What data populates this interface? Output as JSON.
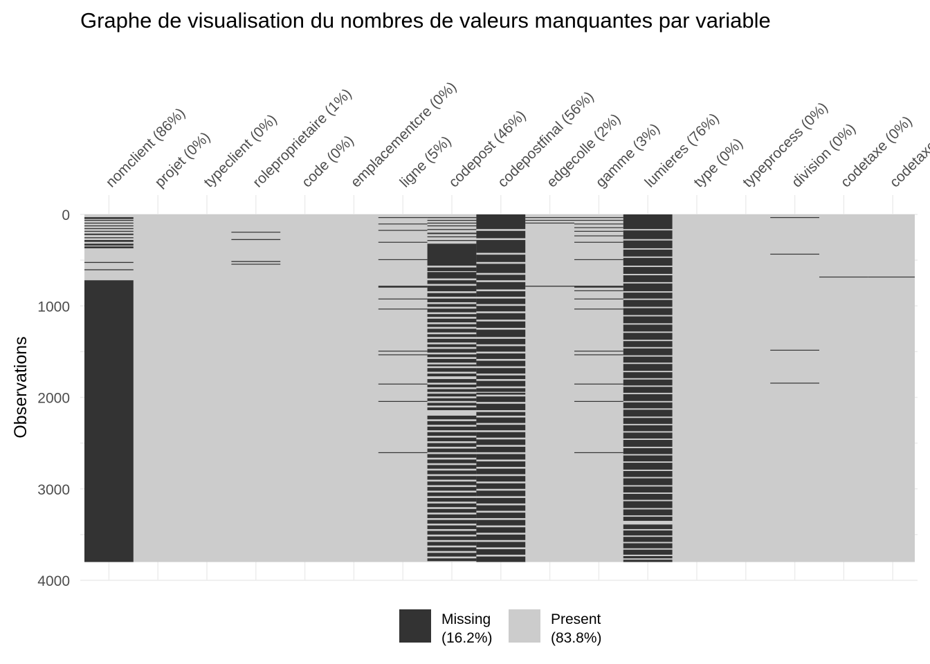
{
  "chart_data": {
    "type": "heatmap",
    "title": "Graphe de visualisation du nombres de valeurs manquantes par variable",
    "xlabel": "",
    "ylabel": "Observations",
    "y_ticks": [
      "0",
      "1000",
      "2000",
      "3000",
      "4000"
    ],
    "ylim": [
      0,
      4000
    ],
    "n_observations": 3800,
    "variables": [
      "nomclient (86%)",
      "projet (0%)",
      "typeclient (0%)",
      "roleproprietaire (1%)",
      "code (0%)",
      "emplacementcre (0%)",
      "ligne (5%)",
      "codepost (46%)",
      "codepostfinal (56%)",
      "edgecolle (2%)",
      "gamme (3%)",
      "lumieres (76%)",
      "type (0%)",
      "typeprocess (0%)",
      "division (0%)",
      "codetaxe (0%)",
      "codetaxe"
    ],
    "missing_rows": {
      "nomclient (86%)": [
        [
          30,
          50
        ],
        [
          60,
          70
        ],
        [
          90,
          100
        ],
        [
          120,
          130
        ],
        [
          150,
          160
        ],
        [
          180,
          190
        ],
        [
          210,
          225
        ],
        [
          250,
          260
        ],
        [
          280,
          300
        ],
        [
          320,
          340
        ],
        [
          350,
          370
        ],
        [
          520,
          530
        ],
        [
          600,
          610
        ],
        [
          720,
          3800
        ]
      ],
      "projet (0%)": [],
      "typeclient (0%)": [],
      "roleproprietaire (1%)": [
        [
          190,
          198
        ],
        [
          270,
          280
        ],
        [
          510,
          520
        ],
        [
          540,
          548
        ]
      ],
      "code (0%)": [],
      "emplacementcre (0%)": [],
      "ligne (5%)": [
        [
          30,
          38
        ],
        [
          100,
          108
        ],
        [
          170,
          178
        ],
        [
          300,
          308
        ],
        [
          490,
          498
        ],
        [
          780,
          800
        ],
        [
          920,
          928
        ],
        [
          1030,
          1038
        ],
        [
          1490,
          1498
        ],
        [
          1530,
          1538
        ],
        [
          1850,
          1858
        ],
        [
          2040,
          2048
        ],
        [
          2600,
          2608
        ]
      ],
      "codepost (46%)": [
        [
          30,
          40
        ],
        [
          60,
          70
        ],
        [
          90,
          100
        ],
        [
          120,
          130
        ],
        [
          160,
          170
        ],
        [
          200,
          215
        ],
        [
          240,
          250
        ],
        [
          280,
          290
        ],
        [
          320,
          560
        ],
        [
          580,
          620
        ],
        [
          630,
          700
        ],
        [
          720,
          760
        ],
        [
          780,
          840
        ],
        [
          860,
          900
        ],
        [
          920,
          960
        ],
        [
          980,
          1010
        ],
        [
          1030,
          1070
        ],
        [
          1090,
          1120
        ],
        [
          1140,
          1180
        ],
        [
          1200,
          1230
        ],
        [
          1250,
          1290
        ],
        [
          1310,
          1340
        ],
        [
          1360,
          1400
        ],
        [
          1420,
          1450
        ],
        [
          1470,
          1510
        ],
        [
          1530,
          1560
        ],
        [
          1580,
          1620
        ],
        [
          1640,
          1660
        ],
        [
          1680,
          1720
        ],
        [
          1740,
          1770
        ],
        [
          1800,
          1840
        ],
        [
          1860,
          1890
        ],
        [
          1910,
          1940
        ],
        [
          1960,
          1990
        ],
        [
          2010,
          2040
        ],
        [
          2060,
          2090
        ],
        [
          2110,
          2140
        ],
        [
          2200,
          2240
        ],
        [
          2260,
          2300
        ],
        [
          2320,
          2360
        ],
        [
          2380,
          2420
        ],
        [
          2440,
          2480
        ],
        [
          2500,
          2540
        ],
        [
          2560,
          2600
        ],
        [
          2620,
          2660
        ],
        [
          2680,
          2720
        ],
        [
          2740,
          2780
        ],
        [
          2800,
          2840
        ],
        [
          2860,
          2900
        ],
        [
          2920,
          2960
        ],
        [
          2980,
          3020
        ],
        [
          3040,
          3080
        ],
        [
          3100,
          3140
        ],
        [
          3160,
          3200
        ],
        [
          3220,
          3260
        ],
        [
          3280,
          3320
        ],
        [
          3340,
          3380
        ],
        [
          3400,
          3440
        ],
        [
          3460,
          3500
        ],
        [
          3520,
          3560
        ],
        [
          3580,
          3620
        ],
        [
          3640,
          3680
        ],
        [
          3700,
          3740
        ],
        [
          3760,
          3790
        ]
      ],
      "codepostfinal (56%)": [
        [
          0,
          160
        ],
        [
          180,
          260
        ],
        [
          280,
          420
        ],
        [
          440,
          520
        ],
        [
          540,
          640
        ],
        [
          660,
          720
        ],
        [
          740,
          820
        ],
        [
          840,
          900
        ],
        [
          920,
          980
        ],
        [
          1000,
          1060
        ],
        [
          1080,
          1150
        ],
        [
          1170,
          1240
        ],
        [
          1260,
          1340
        ],
        [
          1360,
          1420
        ],
        [
          1440,
          1500
        ],
        [
          1520,
          1580
        ],
        [
          1600,
          1660
        ],
        [
          1680,
          1740
        ],
        [
          1760,
          1800
        ],
        [
          1820,
          1880
        ],
        [
          1900,
          1940
        ],
        [
          1950,
          1970
        ],
        [
          1990,
          2050
        ],
        [
          2070,
          2140
        ],
        [
          2160,
          2200
        ],
        [
          2220,
          2280
        ],
        [
          2300,
          2360
        ],
        [
          2380,
          2440
        ],
        [
          2460,
          2520
        ],
        [
          2540,
          2600
        ],
        [
          2620,
          2680
        ],
        [
          2700,
          2760
        ],
        [
          2780,
          2840
        ],
        [
          2860,
          2920
        ],
        [
          2940,
          3000
        ],
        [
          3020,
          3080
        ],
        [
          3100,
          3160
        ],
        [
          3180,
          3240
        ],
        [
          3260,
          3320
        ],
        [
          3340,
          3400
        ],
        [
          3420,
          3480
        ],
        [
          3500,
          3560
        ],
        [
          3580,
          3640
        ],
        [
          3660,
          3720
        ],
        [
          3740,
          3800
        ]
      ],
      "edgecolle (2%)": [
        [
          30,
          38
        ],
        [
          60,
          68
        ],
        [
          90,
          98
        ],
        [
          780,
          790
        ]
      ],
      "gamme (3%)": [
        [
          30,
          38
        ],
        [
          60,
          68
        ],
        [
          100,
          108
        ],
        [
          140,
          148
        ],
        [
          180,
          188
        ],
        [
          230,
          238
        ],
        [
          300,
          308
        ],
        [
          490,
          498
        ],
        [
          780,
          800
        ],
        [
          830,
          838
        ],
        [
          920,
          928
        ],
        [
          1030,
          1038
        ],
        [
          1490,
          1498
        ],
        [
          1530,
          1538
        ],
        [
          1850,
          1858
        ],
        [
          2040,
          2048
        ],
        [
          2600,
          2608
        ]
      ],
      "lumieres (76%)": [
        [
          0,
          160
        ],
        [
          175,
          270
        ],
        [
          285,
          370
        ],
        [
          385,
          460
        ],
        [
          475,
          560
        ],
        [
          575,
          650
        ],
        [
          665,
          740
        ],
        [
          755,
          840
        ],
        [
          855,
          920
        ],
        [
          935,
          1010
        ],
        [
          1025,
          1100
        ],
        [
          1115,
          1190
        ],
        [
          1205,
          1280
        ],
        [
          1295,
          1370
        ],
        [
          1385,
          1450
        ],
        [
          1465,
          1540
        ],
        [
          1555,
          1620
        ],
        [
          1635,
          1710
        ],
        [
          1725,
          1790
        ],
        [
          1805,
          1870
        ],
        [
          1885,
          1950
        ],
        [
          1965,
          2040
        ],
        [
          2055,
          2120
        ],
        [
          2135,
          2210
        ],
        [
          2225,
          2290
        ],
        [
          2305,
          2370
        ],
        [
          2385,
          2450
        ],
        [
          2465,
          2540
        ],
        [
          2555,
          2620
        ],
        [
          2635,
          2700
        ],
        [
          2715,
          2790
        ],
        [
          2805,
          2870
        ],
        [
          2885,
          2960
        ],
        [
          2975,
          3040
        ],
        [
          3055,
          3120
        ],
        [
          3135,
          3210
        ],
        [
          3225,
          3290
        ],
        [
          3305,
          3350
        ],
        [
          3390,
          3440
        ],
        [
          3455,
          3510
        ],
        [
          3525,
          3580
        ],
        [
          3595,
          3650
        ],
        [
          3665,
          3720
        ],
        [
          3735,
          3760
        ],
        [
          3775,
          3800
        ]
      ],
      "type (0%)": [],
      "typeprocess (0%)": [],
      "division (0%)": [
        [
          30,
          36
        ],
        [
          430,
          436
        ],
        [
          1480,
          1486
        ],
        [
          1840,
          1846
        ]
      ],
      "codetaxe (0%)": [
        [
          680,
          688
        ]
      ],
      "codetaxe": [
        [
          680,
          688
        ]
      ]
    },
    "legend": [
      {
        "name": "Missing",
        "pct": "(16.2%)",
        "color": "#333333"
      },
      {
        "name": "Present",
        "pct": "(83.8%)",
        "color": "#cccccc"
      }
    ],
    "legend_position": "bottom",
    "grid": true
  }
}
